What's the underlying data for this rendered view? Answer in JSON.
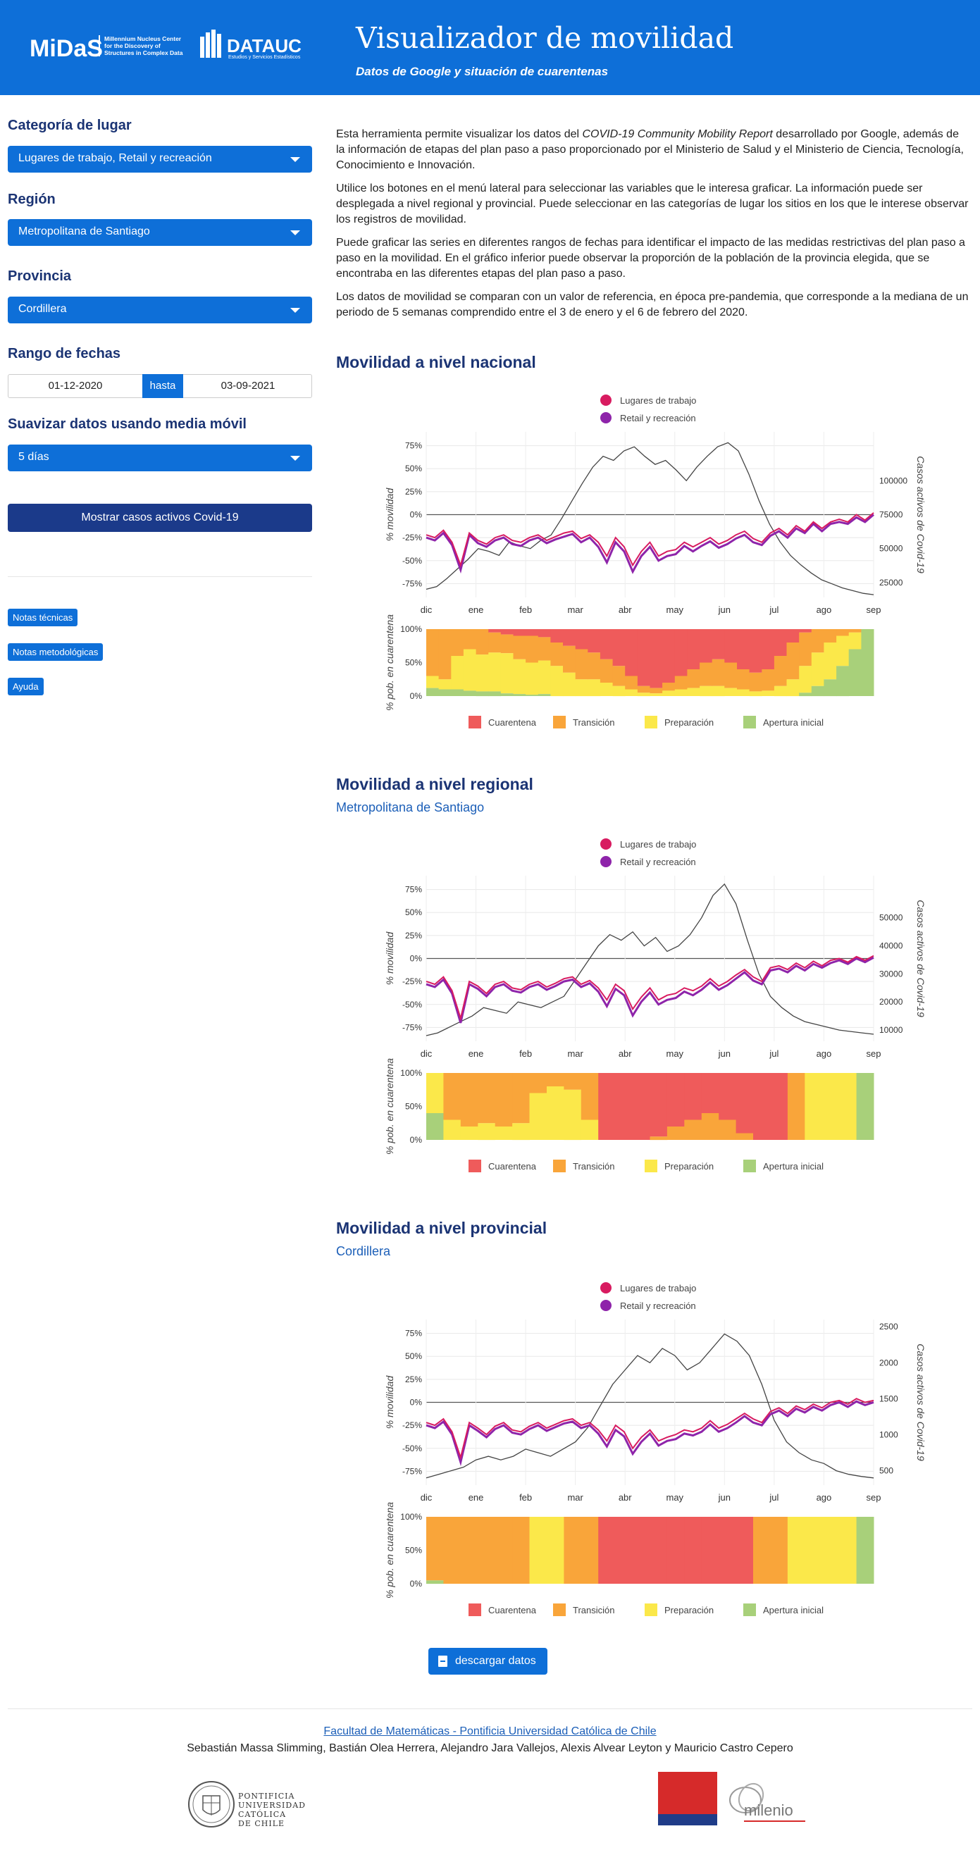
{
  "header": {
    "midas_logo": "MiDaS",
    "midas_tagline": "Millennium Nucleus Center for the Discovery of Structures in Complex Data",
    "dataux_logo": "DATAUC",
    "dataux_sub": "Estudios y Servicios Estadísticos",
    "title": "Visualizador de movilidad",
    "subtitle": "Datos de Google y situación de cuarentenas"
  },
  "sidebar": {
    "category_label": "Categoría de lugar",
    "category_value": "Lugares de trabajo, Retail y recreación",
    "region_label": "Región",
    "region_value": "Metropolitana de Santiago",
    "province_label": "Provincia",
    "province_value": "Cordillera",
    "date_label": "Rango de fechas",
    "date_from": "01-12-2020",
    "date_sep": "hasta",
    "date_to": "03-09-2021",
    "smooth_label": "Suavizar datos usando media móvil",
    "smooth_value": "5 días",
    "show_cases_button": "Mostrar casos activos Covid-19",
    "notes_tech": "Notas técnicas",
    "notes_method": "Notas metodológicas",
    "help": "Ayuda"
  },
  "intro": {
    "p1_a": "Esta herramienta permite visualizar los datos del ",
    "p1_em": "COVID-19 Community Mobility Report",
    "p1_b": " desarrollado por Google, además de la información de etapas del plan paso a paso proporcionado por el Ministerio de Salud y el Ministerio de Ciencia, Tecnología, Conocimiento e Innovación.",
    "p2": "Utilice los botones en el menú lateral para seleccionar las variables que le interesa graficar. La información puede ser desplegada a nivel regional y provincial. Puede seleccionar en las categorías de lugar los sitios en los que le interese observar los registros de movilidad.",
    "p3": "Puede graficar las series en diferentes rangos de fechas para identificar el impacto de las medidas restrictivas del plan paso a paso en la movilidad. En el gráfico inferior puede observar la proporción de la población de la provincia elegida, que se encontraba en las diferentes etapas del plan paso a paso.",
    "p4": "Los datos de movilidad se comparan con un valor de referencia, en época pre-pandemia, que corresponde a la mediana de un periodo de 5 semanas comprendido entre el 3 de enero y el 6 de febrero del 2020."
  },
  "sections": {
    "national_title": "Movilidad a nivel nacional",
    "regional_title": "Movilidad a nivel regional",
    "regional_sub": "Metropolitana de Santiago",
    "provincial_title": "Movilidad a nivel provincial",
    "provincial_sub": "Cordillera"
  },
  "colors": {
    "trabajo": "#d81b60",
    "retail": "#8e24aa",
    "cases": "#444444",
    "cuarentena": "#ef5b5b",
    "transicion": "#f9a53a",
    "preparacion": "#fbe84a",
    "apertura": "#a8d07a"
  },
  "chart_data": [
    {
      "type": "line",
      "name": "national",
      "legend": [
        "Lugares de trabajo",
        "Retail y recreación"
      ],
      "ylabel": "% movilidad",
      "y2label": "Casos activos de Covid-19",
      "yticks": [
        "75%",
        "50%",
        "25%",
        "0%",
        "-25%",
        "-50%",
        "-75%"
      ],
      "y2ticks": [
        "100000",
        "75000",
        "50000",
        "25000"
      ],
      "xticks": [
        "dic",
        "ene",
        "feb",
        "mar",
        "abr",
        "may",
        "jun",
        "jul",
        "ago",
        "sep"
      ],
      "ylim": [
        -0.9,
        0.9
      ],
      "y2lim": [
        14000,
        136000
      ],
      "trabajo": [
        -22,
        -25,
        -17,
        -30,
        -55,
        -20,
        -28,
        -32,
        -25,
        -22,
        -28,
        -30,
        -25,
        -22,
        -28,
        -24,
        -20,
        -18,
        -26,
        -22,
        -30,
        -45,
        -25,
        -35,
        -55,
        -40,
        -30,
        -45,
        -40,
        -38,
        -30,
        -35,
        -30,
        -25,
        -32,
        -28,
        -22,
        -18,
        -26,
        -30,
        -20,
        -15,
        -22,
        -12,
        -18,
        -8,
        -15,
        -8,
        -5,
        -8,
        0,
        -6,
        2
      ],
      "retail": [
        -25,
        -28,
        -20,
        -33,
        -60,
        -22,
        -31,
        -35,
        -28,
        -25,
        -32,
        -34,
        -28,
        -25,
        -31,
        -27,
        -24,
        -21,
        -30,
        -25,
        -35,
        -52,
        -30,
        -40,
        -62,
        -45,
        -35,
        -50,
        -45,
        -43,
        -34,
        -40,
        -34,
        -29,
        -36,
        -32,
        -26,
        -22,
        -30,
        -33,
        -23,
        -18,
        -25,
        -15,
        -20,
        -10,
        -18,
        -10,
        -8,
        -10,
        -3,
        -8,
        0
      ],
      "cases": [
        20000,
        22000,
        28000,
        35000,
        42000,
        50000,
        48000,
        45000,
        55000,
        52000,
        50000,
        56000,
        60000,
        72000,
        85000,
        98000,
        110000,
        118000,
        115000,
        122000,
        125000,
        118000,
        112000,
        115000,
        108000,
        100000,
        110000,
        118000,
        125000,
        128000,
        122000,
        105000,
        85000,
        68000,
        55000,
        45000,
        38000,
        32000,
        27000,
        24000,
        21000,
        19000,
        17000,
        16000
      ]
    },
    {
      "type": "line",
      "name": "regional",
      "legend": [
        "Lugares de trabajo",
        "Retail y recreación"
      ],
      "ylabel": "% movilidad",
      "y2label": "Casos activos de Covid-19",
      "yticks": [
        "75%",
        "50%",
        "25%",
        "0%",
        "-25%",
        "-50%",
        "-75%"
      ],
      "y2ticks": [
        "50000",
        "40000",
        "30000",
        "20000",
        "10000"
      ],
      "xticks": [
        "dic",
        "ene",
        "feb",
        "mar",
        "abr",
        "may",
        "jun",
        "jul",
        "ago",
        "sep"
      ],
      "ylim": [
        -0.9,
        0.9
      ],
      "y2lim": [
        6000,
        65000
      ],
      "trabajo": [
        -25,
        -28,
        -20,
        -35,
        -65,
        -25,
        -30,
        -38,
        -28,
        -25,
        -32,
        -34,
        -28,
        -25,
        -31,
        -27,
        -22,
        -20,
        -28,
        -24,
        -32,
        -45,
        -28,
        -35,
        -55,
        -42,
        -32,
        -45,
        -40,
        -38,
        -32,
        -35,
        -30,
        -22,
        -30,
        -25,
        -18,
        -12,
        -20,
        -25,
        -10,
        -8,
        -12,
        -5,
        -10,
        -3,
        -8,
        -2,
        0,
        -4,
        2,
        -2,
        3
      ],
      "retail": [
        -28,
        -31,
        -23,
        -38,
        -70,
        -28,
        -33,
        -41,
        -31,
        -28,
        -35,
        -37,
        -31,
        -28,
        -34,
        -30,
        -25,
        -23,
        -31,
        -27,
        -36,
        -52,
        -33,
        -40,
        -62,
        -47,
        -37,
        -50,
        -45,
        -43,
        -36,
        -40,
        -34,
        -26,
        -34,
        -29,
        -22,
        -15,
        -24,
        -28,
        -13,
        -11,
        -15,
        -8,
        -13,
        -6,
        -10,
        -5,
        -2,
        -6,
        0,
        -4,
        1
      ],
      "cases": [
        8000,
        9000,
        11000,
        13000,
        15000,
        18000,
        17000,
        16000,
        20000,
        19000,
        18000,
        20000,
        22000,
        28000,
        34000,
        40000,
        44000,
        42000,
        45000,
        40000,
        43000,
        38000,
        40000,
        44000,
        50000,
        58000,
        62000,
        55000,
        42000,
        30000,
        22000,
        18000,
        15000,
        13000,
        12000,
        11000,
        10000,
        9500,
        9000,
        8500
      ]
    },
    {
      "type": "line",
      "name": "provincial",
      "legend": [
        "Lugares de trabajo",
        "Retail y recreación"
      ],
      "ylabel": "% movilidad",
      "y2label": "Casos activos de Covid-19",
      "yticks": [
        "75%",
        "50%",
        "25%",
        "0%",
        "-25%",
        "-50%",
        "-75%"
      ],
      "y2ticks": [
        "2500",
        "2000",
        "1500",
        "1000",
        "500"
      ],
      "xticks": [
        "dic",
        "ene",
        "feb",
        "mar",
        "abr",
        "may",
        "jun",
        "jul",
        "ago",
        "sep"
      ],
      "ylim": [
        -0.9,
        0.9
      ],
      "y2lim": [
        300,
        2600
      ],
      "trabajo": [
        -22,
        -25,
        -18,
        -32,
        -60,
        -22,
        -28,
        -35,
        -26,
        -22,
        -30,
        -32,
        -26,
        -22,
        -28,
        -24,
        -20,
        -18,
        -25,
        -22,
        -30,
        -42,
        -25,
        -32,
        -50,
        -38,
        -30,
        -42,
        -38,
        -35,
        -30,
        -32,
        -28,
        -20,
        -28,
        -24,
        -18,
        -12,
        -18,
        -22,
        -10,
        -6,
        -12,
        -4,
        -8,
        -2,
        -6,
        0,
        2,
        -2,
        4,
        0,
        2
      ],
      "retail": [
        -25,
        -28,
        -21,
        -35,
        -65,
        -25,
        -31,
        -38,
        -29,
        -25,
        -33,
        -35,
        -29,
        -25,
        -31,
        -27,
        -23,
        -21,
        -28,
        -25,
        -34,
        -48,
        -30,
        -37,
        -56,
        -43,
        -34,
        -47,
        -42,
        -40,
        -34,
        -36,
        -32,
        -24,
        -32,
        -28,
        -22,
        -15,
        -22,
        -25,
        -13,
        -9,
        -15,
        -7,
        -11,
        -5,
        -9,
        -3,
        0,
        -5,
        1,
        -3,
        0
      ],
      "cases": [
        400,
        450,
        500,
        550,
        650,
        700,
        650,
        700,
        800,
        750,
        700,
        800,
        900,
        1100,
        1400,
        1700,
        1900,
        2100,
        2000,
        2200,
        2100,
        1900,
        2000,
        2200,
        2400,
        2300,
        2100,
        1700,
        1200,
        900,
        750,
        650,
        600,
        500,
        450,
        420,
        400
      ]
    }
  ],
  "quarantine_legend": [
    "Cuarentena",
    "Transición",
    "Preparación",
    "Apertura inicial"
  ],
  "quarantine_ylabel": "% pob. en cuarentena",
  "quarantine_yticks": [
    "100%",
    "50%",
    "0%"
  ],
  "quarantine": {
    "national": [
      [
        0,
        70,
        18,
        12
      ],
      [
        0,
        75,
        15,
        10
      ],
      [
        0,
        40,
        50,
        10
      ],
      [
        0,
        30,
        62,
        8
      ],
      [
        0,
        38,
        55,
        7
      ],
      [
        5,
        30,
        58,
        7
      ],
      [
        8,
        28,
        60,
        4
      ],
      [
        10,
        35,
        52,
        3
      ],
      [
        10,
        40,
        48,
        2
      ],
      [
        12,
        35,
        50,
        3
      ],
      [
        20,
        35,
        45,
        0
      ],
      [
        25,
        40,
        35,
        0
      ],
      [
        30,
        45,
        25,
        0
      ],
      [
        35,
        40,
        25,
        0
      ],
      [
        45,
        35,
        20,
        0
      ],
      [
        55,
        30,
        15,
        0
      ],
      [
        70,
        20,
        10,
        0
      ],
      [
        85,
        10,
        5,
        0
      ],
      [
        88,
        8,
        4,
        0
      ],
      [
        80,
        12,
        8,
        0
      ],
      [
        70,
        20,
        10,
        0
      ],
      [
        60,
        28,
        12,
        0
      ],
      [
        50,
        35,
        15,
        0
      ],
      [
        45,
        40,
        15,
        0
      ],
      [
        50,
        38,
        12,
        0
      ],
      [
        60,
        30,
        10,
        0
      ],
      [
        65,
        28,
        7,
        0
      ],
      [
        60,
        32,
        8,
        0
      ],
      [
        40,
        45,
        15,
        0
      ],
      [
        20,
        55,
        25,
        0
      ],
      [
        5,
        50,
        40,
        5
      ],
      [
        0,
        35,
        50,
        15
      ],
      [
        0,
        20,
        55,
        25
      ],
      [
        0,
        10,
        45,
        45
      ],
      [
        0,
        5,
        25,
        70
      ],
      [
        0,
        0,
        0,
        100
      ]
    ],
    "regional": [
      [
        0,
        0,
        60,
        40
      ],
      [
        0,
        70,
        30,
        0
      ],
      [
        0,
        80,
        20,
        0
      ],
      [
        0,
        75,
        25,
        0
      ],
      [
        0,
        80,
        20,
        0
      ],
      [
        0,
        75,
        25,
        0
      ],
      [
        0,
        30,
        70,
        0
      ],
      [
        0,
        20,
        80,
        0
      ],
      [
        0,
        25,
        75,
        0
      ],
      [
        0,
        70,
        30,
        0
      ],
      [
        100,
        0,
        0,
        0
      ],
      [
        100,
        0,
        0,
        0
      ],
      [
        100,
        0,
        0,
        0
      ],
      [
        95,
        5,
        0,
        0
      ],
      [
        80,
        20,
        0,
        0
      ],
      [
        70,
        30,
        0,
        0
      ],
      [
        60,
        40,
        0,
        0
      ],
      [
        70,
        30,
        0,
        0
      ],
      [
        90,
        10,
        0,
        0
      ],
      [
        100,
        0,
        0,
        0
      ],
      [
        100,
        0,
        0,
        0
      ],
      [
        0,
        100,
        0,
        0
      ],
      [
        0,
        0,
        100,
        0
      ],
      [
        0,
        0,
        100,
        0
      ],
      [
        0,
        0,
        100,
        0
      ],
      [
        0,
        0,
        0,
        100
      ]
    ],
    "provincial": [
      [
        0,
        95,
        0,
        5
      ],
      [
        0,
        100,
        0,
        0
      ],
      [
        0,
        100,
        0,
        0
      ],
      [
        0,
        100,
        0,
        0
      ],
      [
        0,
        100,
        0,
        0
      ],
      [
        0,
        100,
        0,
        0
      ],
      [
        0,
        0,
        100,
        0
      ],
      [
        0,
        0,
        100,
        0
      ],
      [
        0,
        100,
        0,
        0
      ],
      [
        0,
        100,
        0,
        0
      ],
      [
        100,
        0,
        0,
        0
      ],
      [
        100,
        0,
        0,
        0
      ],
      [
        100,
        0,
        0,
        0
      ],
      [
        100,
        0,
        0,
        0
      ],
      [
        100,
        0,
        0,
        0
      ],
      [
        100,
        0,
        0,
        0
      ],
      [
        100,
        0,
        0,
        0
      ],
      [
        100,
        0,
        0,
        0
      ],
      [
        100,
        0,
        0,
        0
      ],
      [
        0,
        100,
        0,
        0
      ],
      [
        0,
        100,
        0,
        0
      ],
      [
        0,
        0,
        100,
        0
      ],
      [
        0,
        0,
        100,
        0
      ],
      [
        0,
        0,
        100,
        0
      ],
      [
        0,
        0,
        100,
        0
      ],
      [
        0,
        0,
        0,
        100
      ]
    ]
  },
  "download_button": "descargar datos",
  "footer": {
    "link": "Facultad de Matemáticas - Pontificia Universidad Católica de Chile",
    "authors": "Sebastián Massa Slimming, Bastián Olea Herrera, Alejandro Jara Vallejos, Alexis Alvear Leyton y Mauricio Castro Cepero",
    "puc_text": "PONTIFICIA UNIVERSIDAD CATÓLICA DE CHILE",
    "milenio": "milenio"
  }
}
